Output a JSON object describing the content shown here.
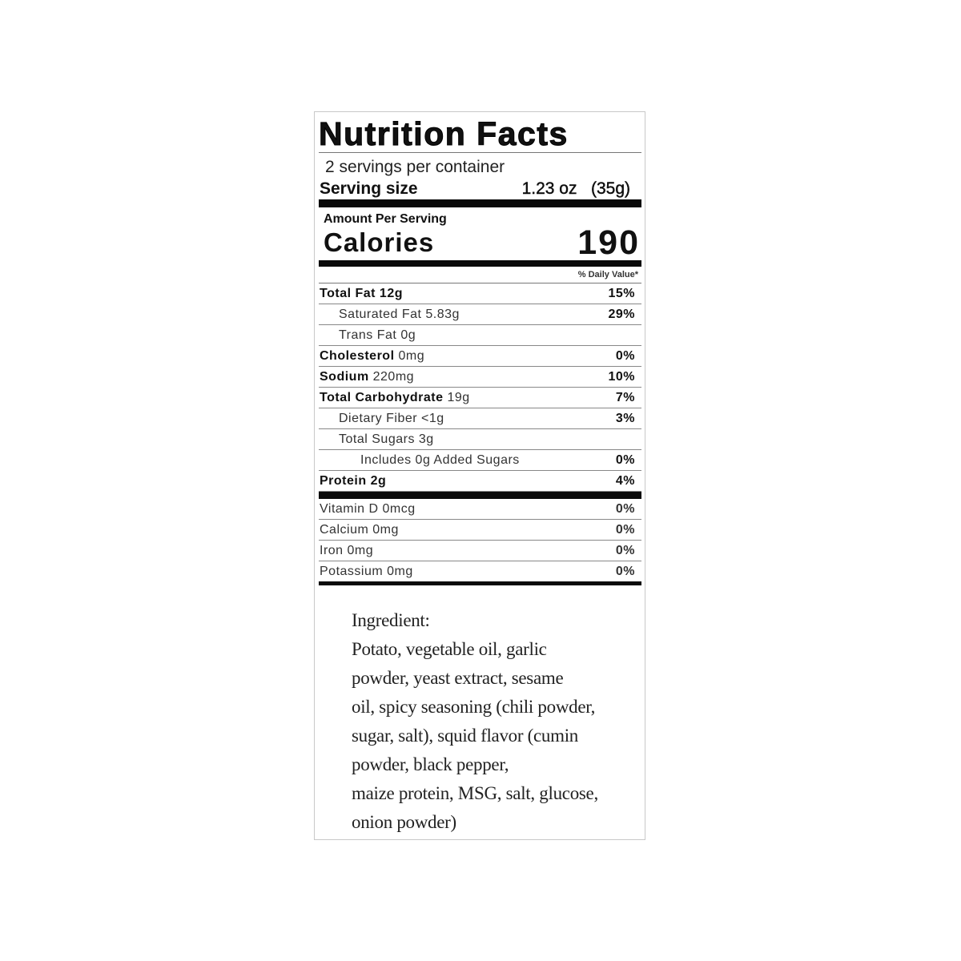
{
  "title": "Nutrition Facts",
  "servings_per_container": "2 servings per container",
  "serving_size": {
    "label": "Serving size",
    "value": "1.23 oz   (35g)"
  },
  "amount_per_serving": "Amount Per Serving",
  "calories": {
    "label": "Calories",
    "value": "190"
  },
  "daily_value_header": "% Daily Value*",
  "nutrients": [
    {
      "bold": "Total Fat 12g",
      "rest": "",
      "dv": "15%",
      "indent": 0
    },
    {
      "bold": "",
      "rest": "Saturated Fat 5.83g",
      "dv": "29%",
      "indent": 1
    },
    {
      "bold": "",
      "rest": "Trans Fat 0g",
      "dv": "",
      "indent": 1
    },
    {
      "bold": "Cholesterol",
      "rest": " 0mg",
      "dv": "0%",
      "indent": 0
    },
    {
      "bold": "Sodium",
      "rest": " 220mg",
      "dv": "10%",
      "indent": 0
    },
    {
      "bold": "Total Carbohydrate",
      "rest": " 19g",
      "dv": "7%",
      "indent": 0
    },
    {
      "bold": "",
      "rest": "Dietary Fiber <1g",
      "dv": "3%",
      "indent": 1
    },
    {
      "bold": "",
      "rest": "Total Sugars 3g",
      "dv": "",
      "indent": 1
    },
    {
      "bold": "",
      "rest": "Includes 0g Added Sugars",
      "dv": "0%",
      "indent": 2
    },
    {
      "bold": "Protein 2g",
      "rest": "",
      "dv": "4%",
      "indent": 0
    }
  ],
  "vitamins": [
    {
      "label": "Vitamin D 0mcg",
      "dv": "0%"
    },
    {
      "label": "Calcium 0mg",
      "dv": "0%"
    },
    {
      "label": "Iron 0mg",
      "dv": "0%"
    },
    {
      "label": "Potassium 0mg",
      "dv": "0%"
    }
  ],
  "ingredients": {
    "heading": "Ingredient:",
    "lines": [
      "Potato, vegetable oil, garlic",
      "powder, yeast extract, sesame",
      "oil, spicy seasoning (chili powder,",
      "sugar, salt), squid flavor (cumin",
      "powder, black pepper,",
      "maize protein, MSG, salt, glucose,",
      "onion powder)"
    ]
  }
}
